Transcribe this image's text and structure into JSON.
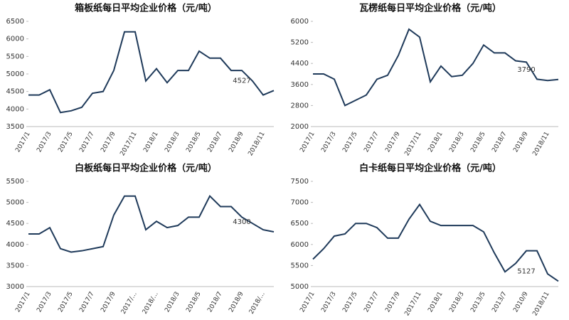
{
  "chart_data": [
    {
      "type": "line",
      "title": "箱板纸每日平均企业价格（元/吨）",
      "categories": [
        "2017/1",
        null,
        "2017/3",
        null,
        "2017/5",
        null,
        "2017/7",
        null,
        "2017/9",
        null,
        "2017/11",
        null,
        "2018/1",
        null,
        "2018/3",
        null,
        "2018/5",
        null,
        "2018/7",
        null,
        "2018/9",
        null,
        "2018/11",
        null
      ],
      "series": [
        {
          "name": "箱板纸",
          "color": "#1f3a5a",
          "values": [
            4400,
            4400,
            4550,
            3900,
            3950,
            4050,
            4450,
            4500,
            5100,
            6200,
            6200,
            4800,
            5150,
            4750,
            5100,
            5100,
            5650,
            5450,
            5450,
            5100,
            5100,
            4800,
            4400,
            4527
          ]
        }
      ],
      "annotation": "4527",
      "ylim": [
        3500,
        6500
      ],
      "yticks": [
        3500,
        4000,
        4500,
        5000,
        5500,
        6000,
        6500
      ],
      "grid": false
    },
    {
      "type": "line",
      "title": "瓦楞纸每日平均企业价格（元/吨）",
      "categories": [
        "2017/1",
        null,
        "2017/3",
        null,
        "2017/5",
        null,
        "2017/7",
        null,
        "2017/9",
        null,
        "2017/11",
        null,
        "2018/1",
        null,
        "2018/3",
        null,
        "2018/5",
        null,
        "2018/7",
        null,
        "2018/9",
        null,
        "2018/11",
        null
      ],
      "series": [
        {
          "name": "瓦楞纸",
          "color": "#1f3a5a",
          "values": [
            4000,
            4000,
            3800,
            2800,
            3000,
            3200,
            3800,
            3950,
            4700,
            5700,
            5400,
            3700,
            4300,
            3900,
            3950,
            4400,
            5100,
            4800,
            4800,
            4500,
            4450,
            3800,
            3750,
            3790
          ]
        }
      ],
      "annotation": "3790",
      "ylim": [
        2000,
        6000
      ],
      "yticks": [
        2000,
        2800,
        3600,
        4400,
        5200,
        6000
      ],
      "grid": false
    },
    {
      "type": "line",
      "title": "白板纸每日平均企业价格（元/吨）",
      "categories": [
        "2017/1",
        null,
        "2017/3",
        null,
        "2017/5",
        null,
        "2017/7",
        null,
        "2017/9",
        null,
        "2017/...",
        null,
        "2018/...",
        null,
        "2018/3",
        null,
        "2018/5",
        null,
        "2018/7",
        null,
        "2018/9",
        null,
        "2018/...",
        null
      ],
      "series": [
        {
          "name": "白板纸",
          "color": "#1f3a5a",
          "values": [
            4250,
            4250,
            4400,
            3900,
            3820,
            3850,
            3900,
            3950,
            4700,
            5150,
            5150,
            4350,
            4550,
            4400,
            4450,
            4650,
            4650,
            5150,
            4900,
            4900,
            4650,
            4500,
            4350,
            4300
          ]
        }
      ],
      "annotation": "4300",
      "ylim": [
        3000,
        5500
      ],
      "yticks": [
        3000,
        3500,
        4000,
        4500,
        5000,
        5500
      ],
      "grid": false
    },
    {
      "type": "line",
      "title": "白卡纸每日平均企业价格（元/吨）",
      "categories": [
        "2017/1",
        null,
        "2017/3",
        null,
        "2017/5",
        null,
        "2017/7",
        null,
        "2017/9",
        null,
        "2017/11",
        null,
        "2018/1",
        null,
        "2018/3",
        null,
        "2013/5",
        null,
        "2013/7",
        null,
        "2010/9",
        null,
        "2018/11",
        null
      ],
      "series": [
        {
          "name": "白卡纸",
          "color": "#1f3a5a",
          "values": [
            5650,
            5900,
            6200,
            6250,
            6500,
            6500,
            6400,
            6150,
            6150,
            6600,
            6950,
            6550,
            6450,
            6450,
            6450,
            6450,
            6300,
            5800,
            5350,
            5550,
            5850,
            5850,
            5300,
            5127
          ]
        }
      ],
      "annotation": "5127",
      "ylim": [
        5000,
        7500
      ],
      "yticks": [
        5000,
        5500,
        6000,
        6500,
        7000,
        7500
      ],
      "grid": false
    }
  ]
}
